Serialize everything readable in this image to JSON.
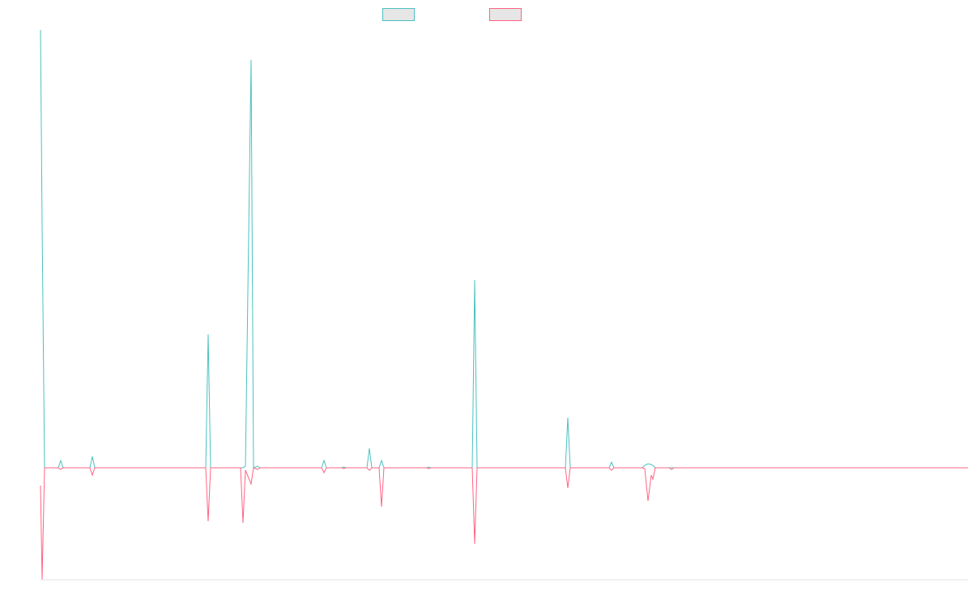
{
  "chart_data": {
    "type": "line",
    "x": [
      0,
      2,
      5,
      22,
      25,
      28,
      61,
      64,
      67,
      204,
      207,
      210,
      247,
      250,
      253,
      260,
      263,
      268,
      271,
      347,
      350,
      353,
      372,
      374,
      377,
      403,
      406,
      409,
      418,
      421,
      424,
      477,
      479,
      482,
      533,
      536,
      539,
      648,
      651,
      654,
      702,
      705,
      708,
      743,
      746,
      750,
      754,
      756,
      759,
      776,
      779,
      782,
      1145
    ],
    "xlim": [
      0,
      1145
    ],
    "ylim": [
      -138,
      541
    ],
    "series": [
      {
        "color": "#4bc0c0",
        "values": [
          541,
          300,
          0,
          0,
          9,
          0,
          0,
          14,
          0,
          0,
          165,
          0,
          0,
          0,
          2,
          504,
          0,
          2,
          0,
          0,
          9,
          0,
          0,
          1,
          0,
          0,
          24,
          0,
          0,
          9,
          0,
          0,
          1,
          0,
          0,
          232,
          0,
          0,
          62,
          0,
          0,
          7,
          0,
          0,
          3,
          5,
          4,
          3,
          0,
          0,
          0,
          0,
          0
        ]
      },
      {
        "color": "#ff6384",
        "values": [
          -22,
          -138,
          0,
          0,
          -2,
          0,
          0,
          -9,
          0,
          0,
          -66,
          0,
          0,
          -68,
          -3,
          -20,
          0,
          -2,
          0,
          0,
          -6,
          0,
          0,
          -1,
          0,
          0,
          -3,
          0,
          0,
          -48,
          0,
          0,
          -1,
          0,
          0,
          -94,
          0,
          0,
          -25,
          0,
          0,
          -3,
          0,
          0,
          -1,
          -41,
          -9,
          -14,
          0,
          0,
          -2,
          0,
          0
        ]
      }
    ]
  }
}
